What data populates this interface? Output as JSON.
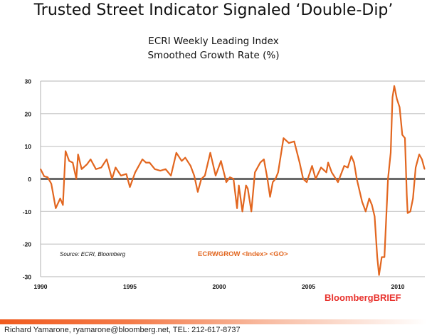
{
  "title": "Trusted Street Indicator Signaled ‘Double-Dip’",
  "chart_data": {
    "type": "line",
    "title": "ECRI Weekly Leading Index",
    "subtitle": "Smoothed Growth Rate (%)",
    "xlabel": "",
    "ylabel": "",
    "xlim": [
      1990,
      2011.5
    ],
    "ylim": [
      -30,
      30
    ],
    "x_ticks": [
      "1990",
      "1995",
      "2000",
      "2005",
      "2010"
    ],
    "y_ticks": [
      "30",
      "20",
      "10",
      "0",
      "-10",
      "-20",
      "-30"
    ],
    "grid": true,
    "line_color": "#e2661f",
    "annotations": {
      "source": "Source: ECRI, Bloomberg",
      "ticker": "ECRWGROW <Index> <GO>"
    },
    "x": [
      1990.0,
      1990.2,
      1990.4,
      1990.6,
      1990.85,
      1991.1,
      1991.25,
      1991.4,
      1991.6,
      1991.8,
      1992.0,
      1992.1,
      1992.3,
      1992.6,
      1992.8,
      1993.1,
      1993.4,
      1993.7,
      1994.0,
      1994.2,
      1994.5,
      1994.8,
      1995.0,
      1995.3,
      1995.7,
      1995.9,
      1996.1,
      1996.4,
      1996.7,
      1997.0,
      1997.3,
      1997.6,
      1997.9,
      1998.1,
      1998.4,
      1998.6,
      1998.8,
      1999.0,
      1999.2,
      1999.5,
      1999.8,
      2000.1,
      2000.4,
      2000.6,
      2000.8,
      2001.0,
      2001.1,
      2001.3,
      2001.5,
      2001.6,
      2001.8,
      2002.0,
      2002.3,
      2002.5,
      2002.7,
      2002.85,
      2003.0,
      2003.15,
      2003.3,
      2003.6,
      2003.9,
      2004.2,
      2004.5,
      2004.7,
      2004.9,
      2005.2,
      2005.4,
      2005.7,
      2006.0,
      2006.1,
      2006.3,
      2006.65,
      2007.0,
      2007.2,
      2007.4,
      2007.55,
      2007.7,
      2008.0,
      2008.2,
      2008.4,
      2008.55,
      2008.7,
      2008.85,
      2008.95,
      2009.1,
      2009.25,
      2009.45,
      2009.6,
      2009.7,
      2009.8,
      2009.95,
      2010.1,
      2010.25,
      2010.4,
      2010.5,
      2010.55,
      2010.7,
      2010.85,
      2011.0,
      2011.2,
      2011.35,
      2011.5
    ],
    "values": [
      3,
      0.8,
      0.5,
      -1.5,
      -9,
      -6,
      -8,
      8.5,
      5.5,
      5,
      0,
      7.5,
      3,
      4.5,
      6,
      3,
      3.5,
      6,
      0,
      3.5,
      1,
      1.5,
      -2.5,
      2,
      6,
      5,
      5,
      3,
      2.5,
      3,
      1,
      8,
      5.5,
      6.5,
      4,
      1,
      -4,
      0,
      1,
      8,
      1,
      5.5,
      -1,
      0.5,
      0,
      -9,
      -2,
      -10,
      -2,
      -3,
      -10,
      2,
      5,
      6,
      0,
      -5.5,
      -1,
      0,
      2,
      12.5,
      11,
      11.5,
      5,
      0,
      -1,
      4,
      0,
      3.5,
      2,
      5,
      2,
      -1,
      4,
      3.5,
      7,
      5,
      0,
      -7,
      -10,
      -6,
      -8,
      -11.5,
      -24,
      -29.5,
      -24,
      -24,
      0,
      8,
      25,
      28.5,
      24.5,
      22,
      13.5,
      12.5,
      -5,
      -10.5,
      -10,
      -6,
      3.5,
      7.5,
      6,
      3
    ]
  },
  "brand": "BloombergBRIEF",
  "footer": "Richard Yamarone, ryamarone@bloomberg.net, TEL: 212-617-8737"
}
